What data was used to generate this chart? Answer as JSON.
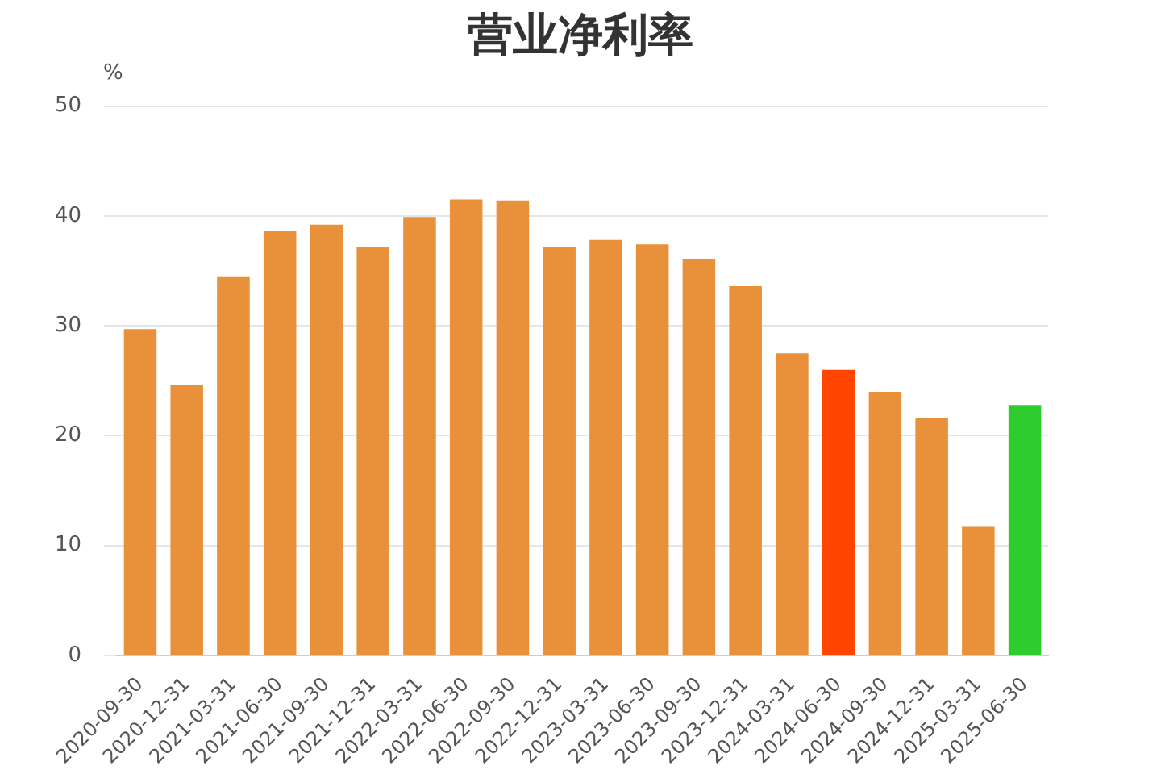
{
  "chart_data": {
    "type": "bar",
    "title": "营业净利率",
    "ylabel": "%",
    "categories": [
      "2020-09-30",
      "2020-12-31",
      "2021-03-31",
      "2021-06-30",
      "2021-09-30",
      "2021-12-31",
      "2022-03-31",
      "2022-06-30",
      "2022-09-30",
      "2022-12-31",
      "2023-03-31",
      "2023-06-30",
      "2023-09-30",
      "2023-12-31",
      "2024-03-31",
      "2024-06-30",
      "2024-09-30",
      "2024-12-31",
      "2025-03-31",
      "2025-06-30"
    ],
    "values": [
      29.7,
      24.6,
      34.5,
      38.6,
      39.2,
      37.2,
      39.9,
      41.5,
      41.4,
      37.2,
      37.8,
      37.4,
      36.1,
      33.6,
      27.5,
      26.0,
      24.0,
      21.6,
      11.7,
      22.8
    ],
    "colors": [
      "#e8913a",
      "#e8913a",
      "#e8913a",
      "#e8913a",
      "#e8913a",
      "#e8913a",
      "#e8913a",
      "#e8913a",
      "#e8913a",
      "#e8913a",
      "#e8913a",
      "#e8913a",
      "#e8913a",
      "#e8913a",
      "#e8913a",
      "#ff4500",
      "#e8913a",
      "#e8913a",
      "#e8913a",
      "#2ecc2e"
    ],
    "ylim": [
      0,
      50
    ],
    "yticks": [
      0,
      10,
      20,
      30,
      40,
      50
    ],
    "grid": "y",
    "legend": false
  }
}
